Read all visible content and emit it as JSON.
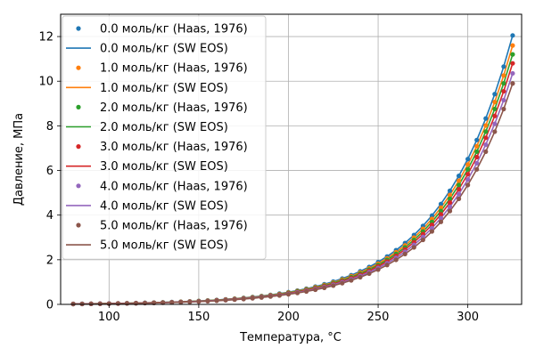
{
  "chart_data": {
    "type": "scatter",
    "title": "",
    "xlabel": "Температура, °C",
    "ylabel": "Давление, МПа",
    "xlim": [
      73,
      330
    ],
    "ylim": [
      0,
      13
    ],
    "xticks": [
      100,
      150,
      200,
      250,
      300
    ],
    "yticks": [
      0,
      2,
      4,
      6,
      8,
      10,
      12
    ],
    "grid": true,
    "legend_position": "top-left",
    "x": [
      80,
      85,
      90,
      95,
      100,
      105,
      110,
      115,
      120,
      125,
      130,
      135,
      140,
      145,
      150,
      155,
      160,
      165,
      170,
      175,
      180,
      185,
      190,
      195,
      200,
      205,
      210,
      215,
      220,
      225,
      230,
      235,
      240,
      245,
      250,
      255,
      260,
      265,
      270,
      275,
      280,
      285,
      290,
      295,
      300,
      305,
      310,
      315,
      320,
      325
    ],
    "series": [
      {
        "name": "0.0 моль/кг (Haas, 1976)",
        "kind": "points",
        "color": "#1f77b4",
        "molality": 0.0,
        "p_end": 12.05
      },
      {
        "name": "0.0 моль/кг (SW EOS)",
        "kind": "line",
        "color": "#1f77b4",
        "molality": 0.0,
        "p_end": 12.05
      },
      {
        "name": "1.0 моль/кг (Haas, 1976)",
        "kind": "points",
        "color": "#ff7f0e",
        "molality": 1.0,
        "p_end": 11.6
      },
      {
        "name": "1.0 моль/кг (SW EOS)",
        "kind": "line",
        "color": "#ff7f0e",
        "molality": 1.0,
        "p_end": 11.6
      },
      {
        "name": "2.0 моль/кг (Haas, 1976)",
        "kind": "points",
        "color": "#2ca02c",
        "molality": 2.0,
        "p_end": 11.2
      },
      {
        "name": "2.0 моль/кг (SW EOS)",
        "kind": "line",
        "color": "#2ca02c",
        "molality": 2.0,
        "p_end": 11.2
      },
      {
        "name": "3.0 моль/кг (Haas, 1976)",
        "kind": "points",
        "color": "#d62728",
        "molality": 3.0,
        "p_end": 10.8
      },
      {
        "name": "3.0 моль/кг (SW EOS)",
        "kind": "line",
        "color": "#d62728",
        "molality": 3.0,
        "p_end": 10.8
      },
      {
        "name": "4.0 моль/кг (Haas, 1976)",
        "kind": "points",
        "color": "#9467bd",
        "molality": 4.0,
        "p_end": 10.35
      },
      {
        "name": "4.0 моль/кг (SW EOS)",
        "kind": "line",
        "color": "#9467bd",
        "molality": 4.0,
        "p_end": 10.35
      },
      {
        "name": "5.0 моль/кг (Haas, 1976)",
        "kind": "points",
        "color": "#8c564b",
        "molality": 5.0,
        "p_end": 9.9
      },
      {
        "name": "5.0 моль/кг (SW EOS)",
        "kind": "line",
        "color": "#8c564b",
        "molality": 5.0,
        "p_end": 9.9
      }
    ]
  }
}
